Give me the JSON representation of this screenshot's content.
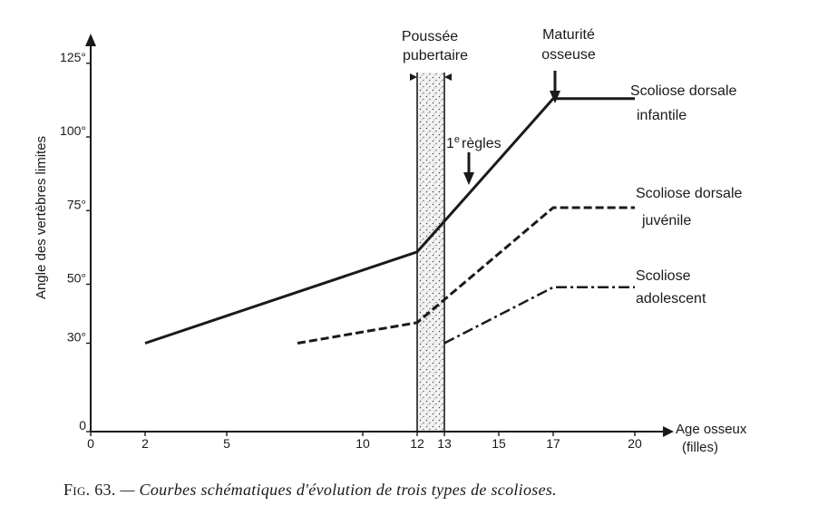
{
  "chart_data": {
    "type": "line",
    "ylabel": "Angle des vertèbres limites",
    "xlabel_lines": [
      "Age osseux",
      "(filles)"
    ],
    "x_ticks": [
      "0",
      "2",
      "5",
      "10",
      "12",
      "13",
      "15",
      "17",
      "20"
    ],
    "y_ticks": [
      "0",
      "30°",
      "50°",
      "75°",
      "100°",
      "125°"
    ],
    "xlim": [
      0,
      21
    ],
    "ylim": [
      0,
      135
    ],
    "series": [
      {
        "name": "Scoliose dorsale infantile",
        "label_lines": [
          "Scoliose dorsale",
          "infantile"
        ],
        "style": "solid",
        "points": [
          [
            2,
            30
          ],
          [
            12,
            61
          ],
          [
            17,
            113
          ],
          [
            20,
            113
          ]
        ]
      },
      {
        "name": "Scoliose dorsale juvénile",
        "label_lines": [
          "Scoliose dorsale",
          "juvénile"
        ],
        "style": "dashed",
        "points": [
          [
            7.6,
            30
          ],
          [
            12,
            37
          ],
          [
            17,
            76
          ],
          [
            20,
            76
          ]
        ]
      },
      {
        "name": "Scoliose adolescent",
        "label_lines": [
          "Scoliose",
          "adolescent"
        ],
        "style": "dashdot",
        "points": [
          [
            13,
            30
          ],
          [
            17,
            49
          ],
          [
            20,
            49
          ]
        ]
      }
    ],
    "band": {
      "from": 12,
      "to": 13,
      "label_lines": [
        "Poussée",
        "pubertaire"
      ]
    },
    "annotations": [
      {
        "label_lines": [
          "Maturité",
          "osseuse"
        ],
        "arrow_x": 17
      },
      {
        "label_sup": "e",
        "label_prefix": "1",
        "label_rest": "règles",
        "arrow_x": 14
      }
    ]
  },
  "caption": {
    "number": "Fig. 63.",
    "text": "— Courbes schématiques d'évolution de trois types de scolioses."
  }
}
